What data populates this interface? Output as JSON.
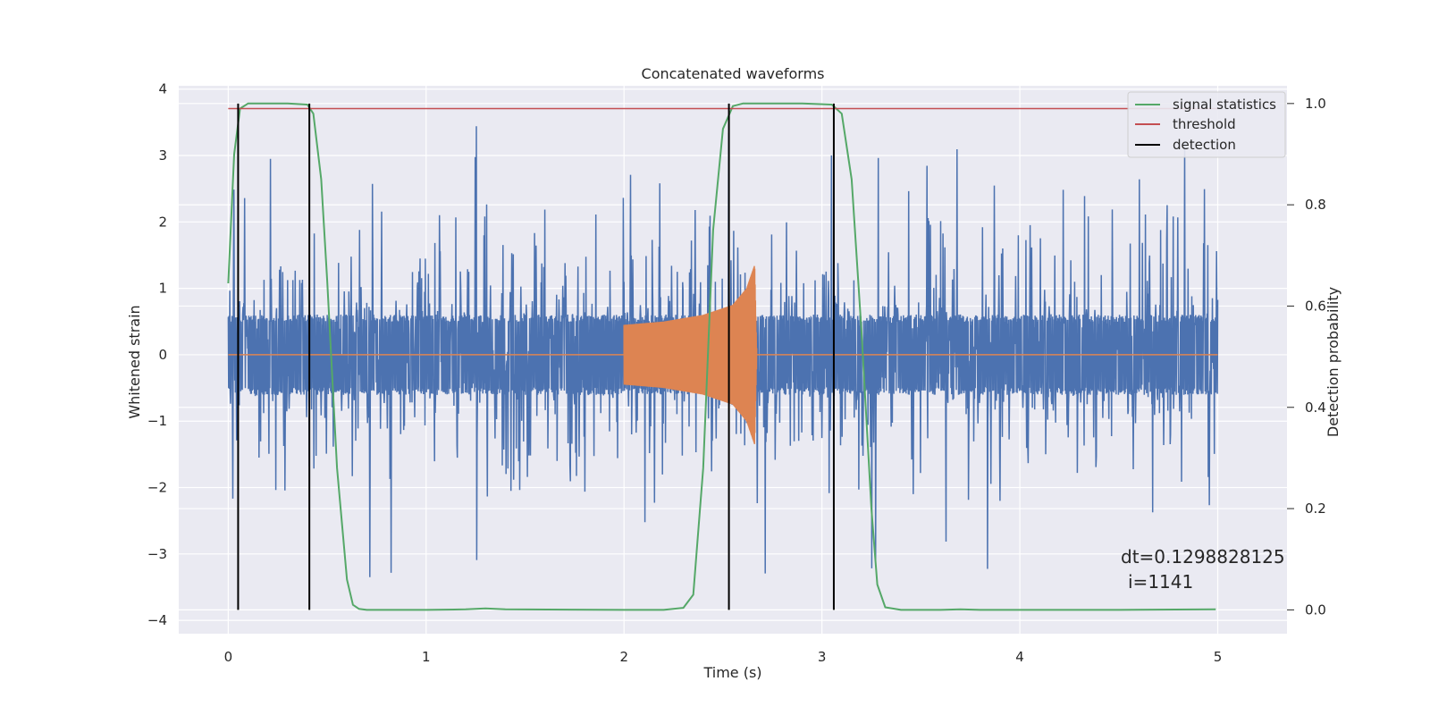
{
  "chart_data": {
    "type": "line",
    "title": "Concatenated waveforms",
    "xlabel": "Time (s)",
    "ylabel": "Whitened strain",
    "y2label": "Detection probability",
    "xlim": [
      -0.25,
      5.35
    ],
    "ylim": [
      -4.2,
      4.05
    ],
    "y2lim": [
      -0.047,
      1.035
    ],
    "xticks": [
      0,
      1,
      2,
      3,
      4,
      5
    ],
    "xtick_labels": [
      "0",
      "1",
      "2",
      "3",
      "4",
      "5"
    ],
    "yticks": [
      4,
      3,
      2,
      1,
      0,
      -1,
      -2,
      -3,
      -4
    ],
    "ytick_labels": [
      "4",
      "3",
      "2",
      "1",
      "0",
      "−1",
      "−2",
      "−3",
      "−4"
    ],
    "y2ticks": [
      1.0,
      0.8,
      0.6,
      0.4,
      0.2,
      0.0
    ],
    "y2tick_labels": [
      "1.0",
      "0.8",
      "0.6",
      "0.4",
      "0.2",
      "0.0"
    ],
    "grid": true,
    "legend_position": "top-right",
    "colors": {
      "background": "#eaeaf2",
      "grid": "#ffffff",
      "strain": "#4c72b0",
      "template": "#dd8452",
      "signal_statistics": "#55a868",
      "threshold": "#c44e52",
      "detection": "#000000"
    },
    "strain_noise": {
      "x_range": [
        0,
        5
      ],
      "core_amplitude": 0.55,
      "peak_range": [
        -3.35,
        3.6
      ]
    },
    "template_chirp": {
      "x": [
        2.0,
        2.2,
        2.4,
        2.55,
        2.62,
        2.66,
        2.67
      ],
      "amplitude": [
        0.45,
        0.5,
        0.6,
        0.75,
        1.0,
        1.35,
        0.1
      ],
      "flat_value": 0
    },
    "series": [
      {
        "name": "signal statistics",
        "x": [
          0,
          0.03,
          0.06,
          0.1,
          0.2,
          0.3,
          0.4,
          0.43,
          0.47,
          0.5,
          0.55,
          0.6,
          0.63,
          0.66,
          0.7,
          1.0,
          1.2,
          1.3,
          1.4,
          2.0,
          2.2,
          2.3,
          2.35,
          2.4,
          2.45,
          2.5,
          2.55,
          2.6,
          2.7,
          2.9,
          3.05,
          3.1,
          3.15,
          3.2,
          3.25,
          3.28,
          3.32,
          3.4,
          3.6,
          3.7,
          3.8,
          4.5,
          4.99
        ],
        "values": [
          0.645,
          0.9,
          0.99,
          1.0,
          1.0,
          1.0,
          0.998,
          0.98,
          0.85,
          0.65,
          0.28,
          0.06,
          0.01,
          0.002,
          0.0,
          0.0,
          0.001,
          0.003,
          0.001,
          0.0,
          0.0,
          0.004,
          0.03,
          0.28,
          0.75,
          0.95,
          0.995,
          1.0,
          1.0,
          1.0,
          0.998,
          0.98,
          0.85,
          0.55,
          0.2,
          0.05,
          0.005,
          0.0,
          0.0,
          0.001,
          0.0,
          0.0,
          0.001
        ]
      },
      {
        "name": "threshold",
        "x": [
          0,
          5
        ],
        "values": [
          0.99,
          0.99
        ]
      },
      {
        "name": "detection",
        "x": [
          0.05,
          0.41,
          2.53,
          3.06
        ],
        "values": [
          1.0,
          1.0,
          1.0,
          1.0
        ]
      }
    ],
    "annotations": [
      "dt=0.1298828125",
      "i=1141"
    ]
  },
  "legend": {
    "items": [
      {
        "label": "signal statistics",
        "color": "#55a868"
      },
      {
        "label": "threshold",
        "color": "#c44e52"
      },
      {
        "label": "detection",
        "color": "#000000"
      }
    ]
  }
}
